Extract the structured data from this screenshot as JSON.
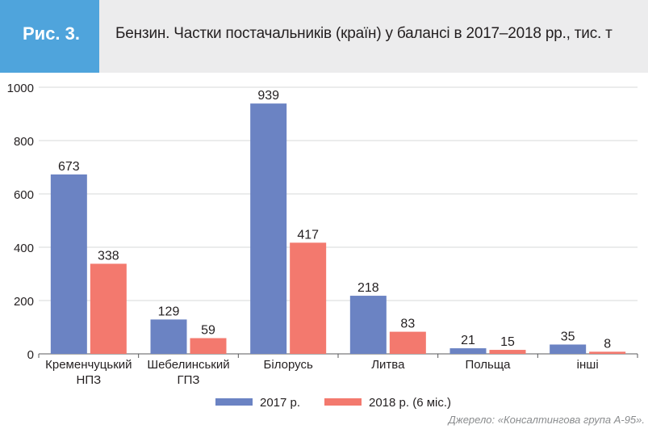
{
  "figure": {
    "label": "Рис. 3.",
    "title": "Бензин. Частки постачальників (країн) у балансі в 2017–2018 рр., тис. т",
    "source": "Джерело: «Консалтингова група А-95»."
  },
  "colors": {
    "badge": "#4fa4dc",
    "header_bg": "#ececed",
    "series_2017": "#6b83c3",
    "series_2018": "#f3796e",
    "grid": "#d7d8da"
  },
  "chart_data": {
    "type": "bar",
    "categories": [
      "Кременчуцький\nНПЗ",
      "Шебелинський\nГПЗ",
      "Білорусь",
      "Литва",
      "Польща",
      "інші"
    ],
    "series": [
      {
        "name": "2017 р.",
        "values": [
          673,
          129,
          939,
          218,
          21,
          35
        ]
      },
      {
        "name": "2018 р. (6 міс.)",
        "values": [
          338,
          59,
          417,
          83,
          15,
          8
        ]
      }
    ],
    "ylim": [
      0,
      1000
    ],
    "yticks": [
      0,
      200,
      400,
      600,
      800,
      1000
    ],
    "grid": true,
    "legend_position": "bottom-center",
    "data_labels": true
  }
}
